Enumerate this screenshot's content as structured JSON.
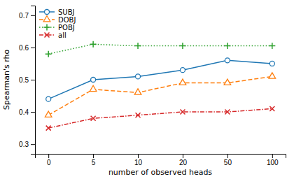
{
  "chart_data": {
    "type": "line",
    "xlabel": "number of observed heads",
    "ylabel": "Spearman's rho",
    "categories": [
      "0",
      "5",
      "10",
      "20",
      "50",
      "100"
    ],
    "series": [
      {
        "name": "SUBJ",
        "values": [
          0.44,
          0.5,
          0.51,
          0.53,
          0.56,
          0.55
        ],
        "line_style": "solid",
        "marker": "circle-open"
      },
      {
        "name": "DOBJ",
        "values": [
          0.39,
          0.47,
          0.46,
          0.49,
          0.49,
          0.51
        ],
        "line_style": "dashed",
        "marker": "triangle-open"
      },
      {
        "name": "POBJ",
        "values": [
          0.58,
          0.61,
          0.605,
          0.605,
          0.605,
          0.605
        ],
        "line_style": "dotted",
        "marker": "plus"
      },
      {
        "name": "all",
        "values": [
          0.35,
          0.38,
          0.39,
          0.4,
          0.4,
          0.41
        ],
        "line_style": "dashdot",
        "marker": "x"
      }
    ],
    "ylim": [
      0.27,
      0.73
    ],
    "yticks": [
      0.3,
      0.4,
      0.5,
      0.6,
      0.7
    ],
    "grid": false,
    "legend": "top-left"
  }
}
